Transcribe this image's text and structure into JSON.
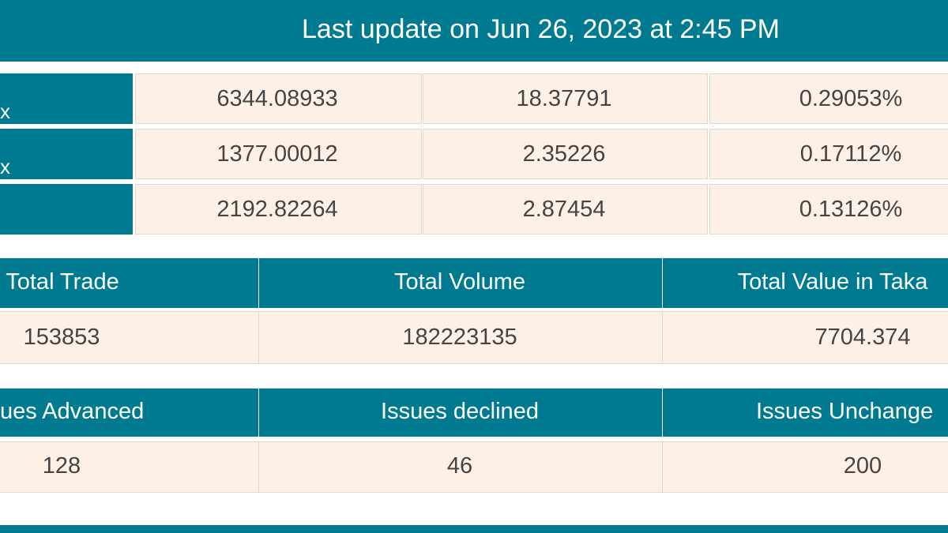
{
  "header": {
    "title": "Last update on Jun 26, 2023 at 2:45 PM"
  },
  "indices": {
    "rows": [
      {
        "label": "x",
        "values": [
          "6344.08933",
          "18.37791",
          "0.29053%"
        ]
      },
      {
        "label": "x",
        "values": [
          "1377.00012",
          "2.35226",
          "0.17112%"
        ]
      },
      {
        "values": [
          "2192.82264",
          "2.87454",
          "0.13126%"
        ]
      }
    ]
  },
  "trade": {
    "headers": [
      "Total Trade",
      "Total Volume",
      "Total Value in Taka"
    ],
    "values": [
      "153853",
      "182223135",
      "7704.374"
    ]
  },
  "issues": {
    "headers": [
      "ues Advanced",
      "Issues declined",
      "Issues Unchange"
    ],
    "values": [
      "128",
      "46",
      "200"
    ]
  }
}
